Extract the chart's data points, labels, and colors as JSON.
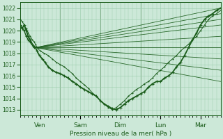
{
  "xlabel": "Pression niveau de la mer( hPa )",
  "bg_color": "#cce8d8",
  "grid_color": "#99ccaa",
  "line_color": "#1a5c1a",
  "ylim": [
    1012.5,
    1022.5
  ],
  "yticks": [
    1013,
    1014,
    1015,
    1016,
    1017,
    1018,
    1019,
    1020,
    1021,
    1022
  ],
  "xlim": [
    0,
    5.0
  ],
  "x_ticks": [
    0.5,
    1.5,
    2.5,
    3.5,
    4.5
  ],
  "x_labels": [
    "Ven",
    "Sam",
    "Dim",
    "Lun",
    "Mar"
  ],
  "x_vlines": [
    0,
    1.0,
    2.0,
    3.0,
    4.0,
    5.0
  ],
  "fan_origin_x": 0.38,
  "fan_origin_y": 1018.5,
  "fan_end_x": 5.0,
  "fan_lines_end_y": [
    1022.0,
    1021.5,
    1021.0,
    1020.5,
    1019.5,
    1018.5,
    1017.5,
    1016.5,
    1015.5
  ],
  "thick_noisy_x": [
    0.0,
    0.05,
    0.1,
    0.15,
    0.2,
    0.25,
    0.3,
    0.35,
    0.38,
    0.42,
    0.48,
    0.55,
    0.62,
    0.7,
    0.8,
    0.9,
    1.0,
    1.1,
    1.2,
    1.3,
    1.4,
    1.5,
    1.6,
    1.7,
    1.8,
    1.9,
    2.0,
    2.1,
    2.2,
    2.3,
    2.4,
    2.5,
    2.6,
    2.7,
    2.8,
    2.9,
    3.0,
    3.1,
    3.2,
    3.3,
    3.4,
    3.5,
    3.6,
    3.7,
    3.8,
    3.9,
    4.0,
    4.1,
    4.2,
    4.3,
    4.4,
    4.5,
    4.6,
    4.7,
    4.8,
    4.9,
    5.0
  ],
  "thick_noisy_y": [
    1020.5,
    1020.2,
    1020.5,
    1020.0,
    1019.5,
    1019.2,
    1018.8,
    1018.5,
    1018.5,
    1018.2,
    1017.8,
    1017.5,
    1017.2,
    1016.8,
    1016.5,
    1016.3,
    1016.2,
    1016.0,
    1015.8,
    1015.5,
    1015.3,
    1015.0,
    1014.8,
    1014.6,
    1014.4,
    1014.2,
    1013.8,
    1013.5,
    1013.3,
    1013.1,
    1013.0,
    1013.2,
    1013.5,
    1013.8,
    1014.0,
    1014.2,
    1014.4,
    1014.6,
    1015.0,
    1015.3,
    1015.5,
    1015.5,
    1015.8,
    1016.0,
    1016.3,
    1016.8,
    1017.2,
    1017.8,
    1018.5,
    1019.2,
    1019.8,
    1020.5,
    1021.0,
    1021.3,
    1021.5,
    1021.8,
    1022.0
  ],
  "thin_noisy_x": [
    0.0,
    0.05,
    0.1,
    0.15,
    0.2,
    0.25,
    0.3,
    0.35,
    0.38,
    0.42,
    0.5,
    0.6,
    0.7,
    0.8,
    0.9,
    1.0,
    1.1,
    1.2,
    1.3,
    1.4,
    1.5,
    1.6,
    1.7,
    1.8,
    1.9,
    2.0,
    2.1,
    2.2,
    2.3,
    2.4,
    2.5,
    2.6,
    2.7,
    2.8,
    2.9,
    3.0,
    3.1,
    3.2,
    3.3,
    3.4,
    3.5,
    3.6,
    3.7,
    3.8,
    3.9,
    4.0,
    4.1,
    4.2,
    4.3,
    4.4,
    4.5,
    4.6,
    4.7,
    4.8,
    4.9,
    5.0
  ],
  "thin_noisy_y": [
    1021.0,
    1020.8,
    1020.5,
    1020.2,
    1019.8,
    1019.5,
    1019.2,
    1019.0,
    1018.8,
    1018.5,
    1018.2,
    1018.0,
    1017.8,
    1017.5,
    1017.2,
    1017.0,
    1016.8,
    1016.5,
    1016.2,
    1015.8,
    1015.5,
    1015.2,
    1014.9,
    1014.5,
    1014.2,
    1013.8,
    1013.5,
    1013.2,
    1013.0,
    1013.2,
    1013.5,
    1013.8,
    1014.2,
    1014.5,
    1014.8,
    1015.0,
    1015.3,
    1015.5,
    1015.8,
    1016.2,
    1016.5,
    1016.8,
    1017.2,
    1017.5,
    1017.8,
    1018.2,
    1018.5,
    1018.8,
    1019.2,
    1019.5,
    1020.0,
    1020.5,
    1021.0,
    1021.3,
    1021.5,
    1021.8
  ]
}
